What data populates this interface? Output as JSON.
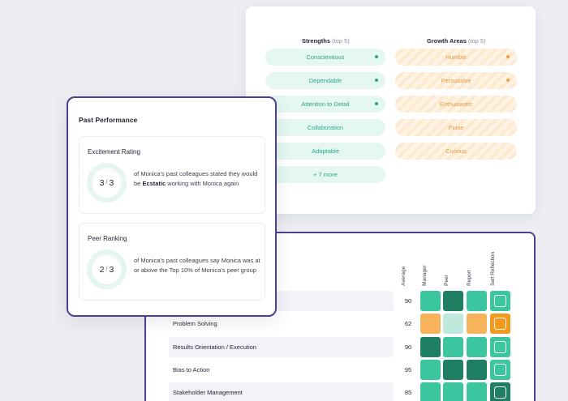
{
  "traits": {
    "strengths_title": "Strengths",
    "strengths_sub": "(top 5)",
    "growth_title": "Growth Areas",
    "growth_sub": "(top 5)",
    "strengths": [
      "Conscientious",
      "Dependable",
      "Attention to Detail",
      "Collaboration",
      "Adaptable"
    ],
    "strengths_more": "+ 7 more",
    "growth": [
      "Humble",
      "Persuasive",
      "Enthusiastic",
      "Poise",
      "Curious"
    ]
  },
  "matrix": {
    "columns": [
      "Average",
      "Manager",
      "Peer",
      "Report",
      "Self Reflection"
    ],
    "rows": [
      {
        "label": "",
        "avg": "90"
      },
      {
        "label": "Problem Solving",
        "avg": "62"
      },
      {
        "label": "Results Orientation / Execution",
        "avg": "90"
      },
      {
        "label": "Bias to Action",
        "avg": "95"
      },
      {
        "label": "Stakeholder Management",
        "avg": "85"
      }
    ],
    "colors": {
      "teal": "#3cc6a0",
      "dark_teal": "#1e7f63",
      "light_teal": "#bfe9dc",
      "orange": "#f7b25c",
      "dark_orange": "#f39a1e"
    }
  },
  "performance": {
    "title": "Past Performance",
    "excitement": {
      "title": "Excitement Rating",
      "score": "3",
      "total": "3",
      "desc_pre": "of Monica's past colleagues stated they would be ",
      "desc_bold": "Ecstatic",
      "desc_post": " working with Monica again"
    },
    "peer": {
      "title": "Peer Ranking",
      "score": "2",
      "total": "3",
      "desc": "of Monica's past colleagues say Monica was at or above the Top 10% of Monica's peer group"
    }
  }
}
